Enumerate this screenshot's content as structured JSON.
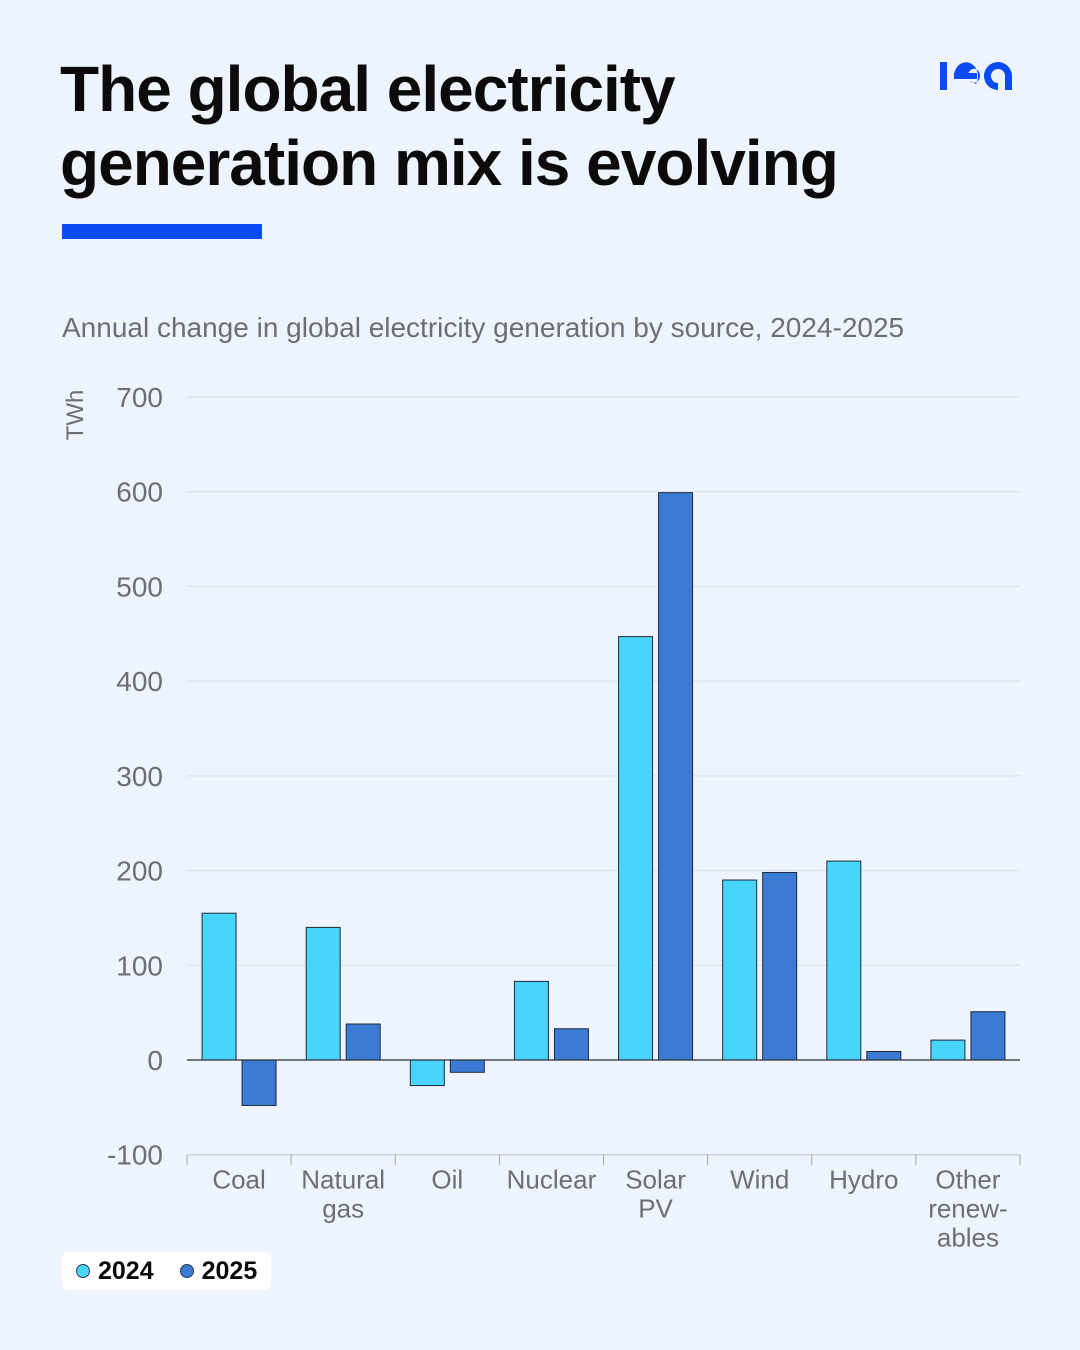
{
  "header": {
    "title_line1": "The global electricity",
    "title_line2": "generation mix is evolving",
    "logo_text": "iea",
    "accent_color": "#0a4cf2"
  },
  "colors": {
    "series_2024": "#48d4fb",
    "series_2025": "#3c7bd4",
    "background": "#eef4fd",
    "gridline": "#d5dde8"
  },
  "chart_data": {
    "type": "bar",
    "title": "Annual change in global electricity generation by source, 2024-2025",
    "ylabel": "TWh",
    "xlabel": "",
    "ylim": [
      -100,
      700
    ],
    "yticks": [
      700,
      600,
      500,
      400,
      300,
      200,
      100,
      0,
      -100
    ],
    "grid": true,
    "legend": "bottom-left",
    "categories": [
      [
        "Coal"
      ],
      [
        "Natural",
        "gas"
      ],
      [
        "Oil"
      ],
      [
        "Nuclear"
      ],
      [
        "Solar",
        "PV"
      ],
      [
        "Wind"
      ],
      [
        "Hydro"
      ],
      [
        "Other",
        "renew-",
        "ables"
      ]
    ],
    "series": [
      {
        "name": "2024",
        "values": [
          155,
          140,
          -27,
          83,
          447,
          190,
          210,
          21
        ]
      },
      {
        "name": "2025",
        "values": [
          -48,
          38,
          -13,
          33,
          599,
          198,
          9,
          51
        ]
      }
    ]
  }
}
